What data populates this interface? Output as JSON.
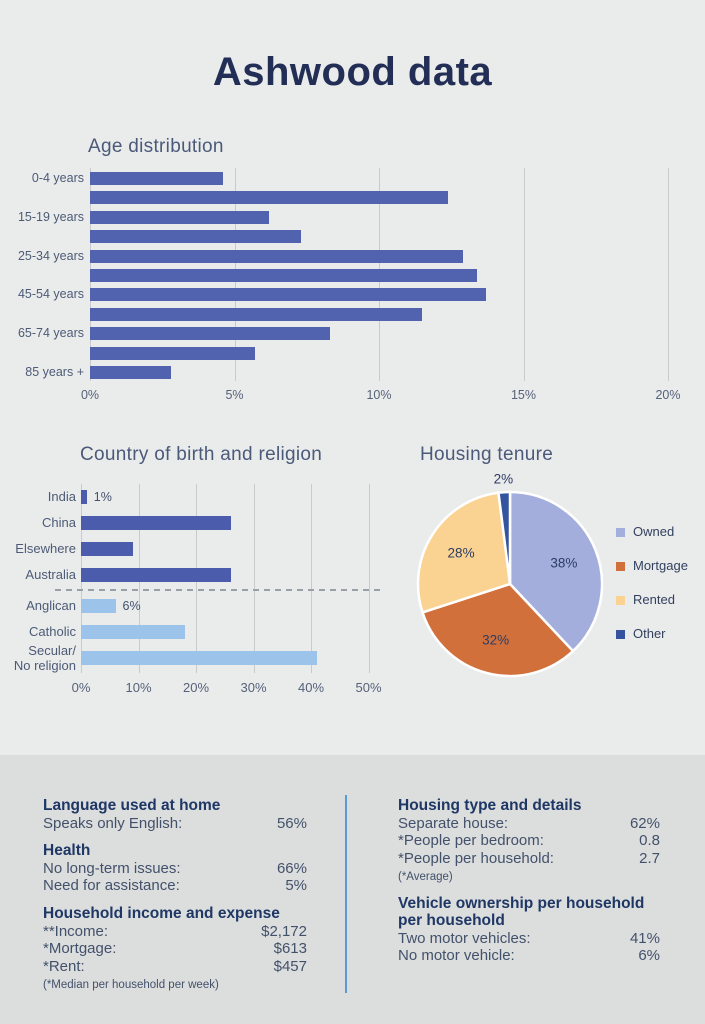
{
  "title": "Ashwood data",
  "colors": {
    "page_bg": "#eaebeb",
    "panel_bg": "#dcdddd",
    "main_title": "#232e56",
    "chart_title": "#4b5a7a",
    "axis_label": "#4d5b76",
    "age_bar": "#5163ae",
    "country_bar": "#4a5cab",
    "religion_bar": "#9cc3e9",
    "gridline": "#c9cacb",
    "dashed_line": "#9aa0a8",
    "column_divider": "#5b9bd5",
    "heading_text": "#1e3765",
    "body_text": "#42516b"
  },
  "chart_data": [
    {
      "type": "bar",
      "orientation": "horizontal",
      "title": "Age distribution",
      "labels": [
        "0-4 years",
        "",
        "15-19 years",
        "",
        "25-34 years",
        "",
        "45-54 years",
        "",
        "65-74 years",
        "",
        "85 years +"
      ],
      "values": [
        4.6,
        12.4,
        6.2,
        7.3,
        12.9,
        13.4,
        13.7,
        11.5,
        8.3,
        5.7,
        2.8
      ],
      "unit": "%",
      "xlim": [
        0,
        20
      ],
      "xticks": [
        "0%",
        "5%",
        "10%",
        "15%",
        "20%"
      ],
      "grid": "vertical"
    },
    {
      "type": "bar",
      "orientation": "horizontal",
      "title": "Country of birth and religion",
      "groups": [
        {
          "label": "India",
          "value": 1,
          "series": "country",
          "annotated": true
        },
        {
          "label": "China",
          "value": 26,
          "series": "country"
        },
        {
          "label": "Elsewhere",
          "value": 9,
          "series": "country"
        },
        {
          "label": "Australia",
          "value": 26,
          "series": "country"
        },
        {
          "label": "Anglican",
          "value": 6,
          "series": "religion",
          "annotated": true
        },
        {
          "label": "Catholic",
          "value": 18,
          "series": "religion"
        },
        {
          "label": "Secular/\nNo religion",
          "value": 41,
          "series": "religion"
        }
      ],
      "unit": "%",
      "xlim": [
        0,
        50
      ],
      "xticks": [
        "0%",
        "10%",
        "20%",
        "30%",
        "40%",
        "50%"
      ],
      "separator": "dashed line between country-of-birth bars and religion bars",
      "grid": "vertical"
    },
    {
      "type": "pie",
      "title": "Housing tenure",
      "slices": [
        {
          "label": "Owned",
          "value": 38,
          "color": "#a3aedd"
        },
        {
          "label": "Mortgage",
          "value": 32,
          "color": "#d2703c"
        },
        {
          "label": "Rented",
          "value": 28,
          "color": "#fad392"
        },
        {
          "label": "Other",
          "value": 2,
          "color": "#35549f"
        }
      ],
      "start_angle": "12 o'clock, clockwise",
      "legend_position": "right"
    }
  ],
  "panel": {
    "left": {
      "sections": [
        {
          "heading": "Language used at home",
          "rows": [
            {
              "label": "Speaks only English:",
              "value": "56%"
            }
          ]
        },
        {
          "heading": "Health",
          "rows": [
            {
              "label": "No long-term issues:",
              "value": "66%"
            },
            {
              "label": "Need for assistance:",
              "value": "5%"
            }
          ]
        },
        {
          "heading": "Household income and expense",
          "rows": [
            {
              "label": "**Income:",
              "value": "$2,172"
            },
            {
              "label": "*Mortgage:",
              "value": "$613"
            },
            {
              "label": "*Rent:",
              "value": "$457"
            }
          ],
          "note": "(*Median per household per week)"
        }
      ]
    },
    "right": {
      "sections": [
        {
          "heading": "Housing type and details",
          "rows": [
            {
              "label": "Separate house:",
              "value": "62%"
            },
            {
              "label": "*People per bedroom:",
              "value": "0.8"
            },
            {
              "label": "*People per household:",
              "value": "2.7"
            }
          ],
          "note": "(*Average)"
        },
        {
          "heading": "Vehicle ownership per household per household",
          "rows": [
            {
              "label": "Two motor vehicles:",
              "value": "41%"
            },
            {
              "label": "No motor vehicle:",
              "value": "6%"
            }
          ]
        }
      ]
    }
  }
}
